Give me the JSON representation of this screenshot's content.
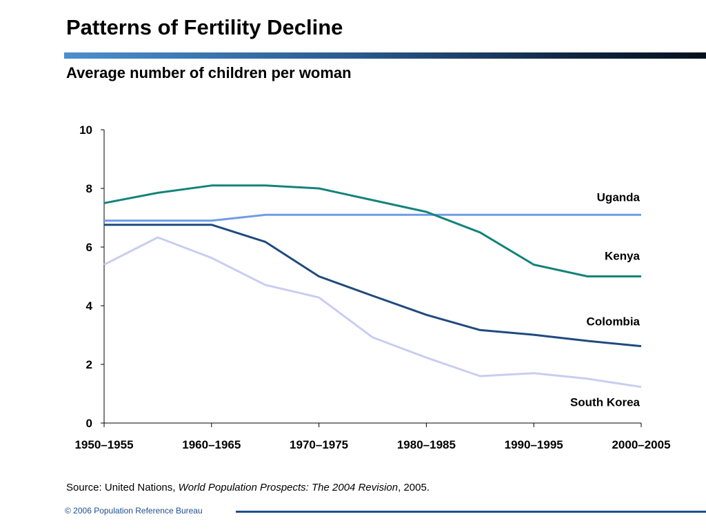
{
  "title": "Patterns of Fertility Decline",
  "subtitle": "Average number of children per woman",
  "source": {
    "prefix": "Source: United Nations, ",
    "italic": "World Population Prospects: The 2004 Revision",
    "suffix": ", 2005."
  },
  "footer": "© 2006 Population Reference Bureau",
  "chart_data": {
    "type": "line",
    "title": "",
    "xlabel": "",
    "ylabel": "",
    "x_tick_labels": [
      "1950–1955",
      "1960–1965",
      "1970–1975",
      "1980–1985",
      "1990–1995",
      "2000–2005"
    ],
    "x": [
      "1950–1955",
      "1955–1960",
      "1960–1965",
      "1965–1970",
      "1970–1975",
      "1975–1980",
      "1980–1985",
      "1985–1990",
      "1990–1995",
      "1995–2000",
      "2000–2005"
    ],
    "ylim": [
      0,
      10
    ],
    "y_ticks": [
      0,
      2,
      4,
      6,
      8,
      10
    ],
    "grid": false,
    "legend": "labels placed at right end of lines",
    "series": [
      {
        "name": "Uganda",
        "color": "#6f9be8",
        "values": [
          6.9,
          6.9,
          6.9,
          7.1,
          7.1,
          7.1,
          7.1,
          7.1,
          7.1,
          7.1,
          7.1
        ]
      },
      {
        "name": "Kenya",
        "color": "#13837a",
        "values": [
          7.5,
          7.85,
          8.1,
          8.1,
          8.0,
          7.6,
          7.2,
          6.5,
          5.4,
          5.0,
          5.0
        ]
      },
      {
        "name": "Colombia",
        "color": "#1f4a7e",
        "values": [
          6.76,
          6.76,
          6.76,
          6.18,
          5.0,
          4.34,
          3.69,
          3.17,
          3.01,
          2.8,
          2.62
        ]
      },
      {
        "name": "South Korea",
        "color": "#c9cdf1",
        "values": [
          5.4,
          6.33,
          5.63,
          4.71,
          4.28,
          2.92,
          2.23,
          1.6,
          1.7,
          1.51,
          1.23
        ]
      }
    ],
    "labels": [
      {
        "text": "Uganda",
        "series": 0
      },
      {
        "text": "Kenya",
        "series": 1
      },
      {
        "text": "Colombia",
        "series": 2
      },
      {
        "text": "South Korea",
        "series": 3
      }
    ]
  }
}
